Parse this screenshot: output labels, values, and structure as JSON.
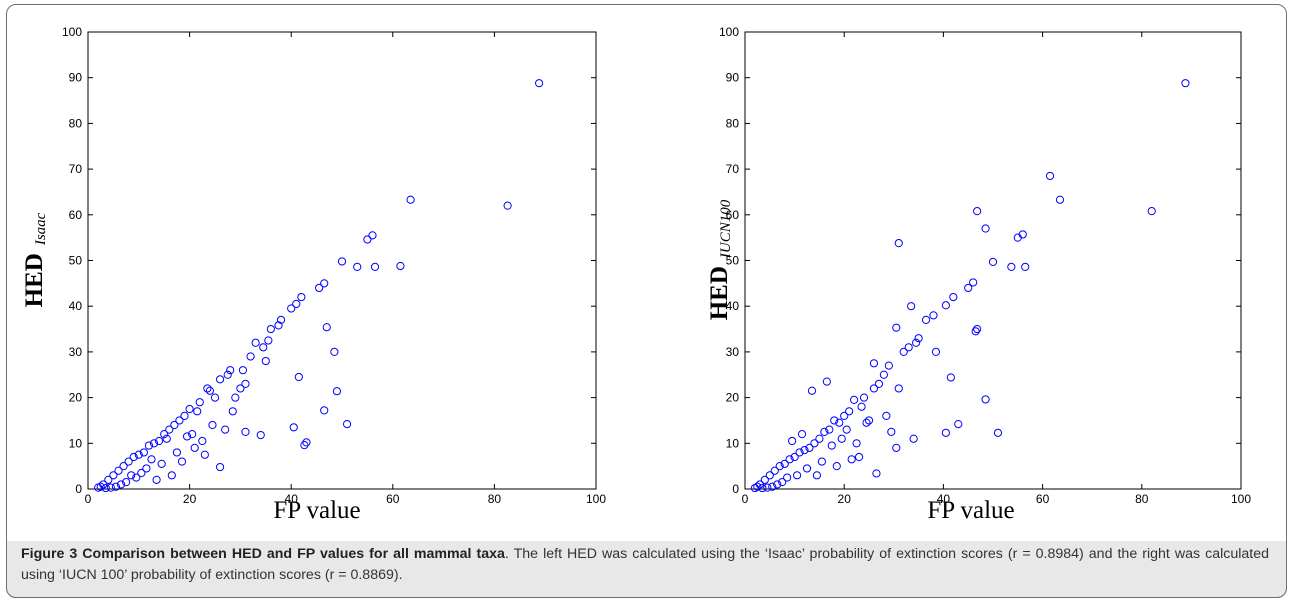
{
  "figure": {
    "caption_title": "Figure 3 Comparison between HED and FP values for all mammal taxa",
    "caption_text": ". The left HED was calculated using the ‘Isaac’ probability of extinction scores (r = 0.8984) and the right was calculated using ‘IUCN 100’ probability of extinction scores (r = 0.8869)."
  },
  "chart_data": [
    {
      "type": "scatter",
      "xlabel": "FP value",
      "ylabel": "HED",
      "ylabel_subscript": "Isaac",
      "xlim": [
        0,
        100
      ],
      "ylim": [
        0,
        100
      ],
      "xticks": [
        0,
        20,
        40,
        60,
        80,
        100
      ],
      "yticks": [
        0,
        10,
        20,
        30,
        40,
        50,
        60,
        70,
        80,
        90,
        100
      ],
      "marker": "open-circle",
      "marker_color": "#0000ff",
      "grid": false,
      "points": [
        [
          88.8,
          88.8
        ],
        [
          63.5,
          63.3
        ],
        [
          82.6,
          62.0
        ],
        [
          56.0,
          55.5
        ],
        [
          55.0,
          54.6
        ],
        [
          50.0,
          49.8
        ],
        [
          53.0,
          48.6
        ],
        [
          56.5,
          48.6
        ],
        [
          61.5,
          48.8
        ],
        [
          46.5,
          45.0
        ],
        [
          45.5,
          44.0
        ],
        [
          42.0,
          42.0
        ],
        [
          41.0,
          40.5
        ],
        [
          40.0,
          39.5
        ],
        [
          38.0,
          37.0
        ],
        [
          37.5,
          35.8
        ],
        [
          47.0,
          35.4
        ],
        [
          36.0,
          35.0
        ],
        [
          33.0,
          32.0
        ],
        [
          35.5,
          32.5
        ],
        [
          48.5,
          30.0
        ],
        [
          35.0,
          28.0
        ],
        [
          41.5,
          24.5
        ],
        [
          49.0,
          21.4
        ],
        [
          31.0,
          23.0
        ],
        [
          30.0,
          22.0
        ],
        [
          46.5,
          17.2
        ],
        [
          29.0,
          20.0
        ],
        [
          51.0,
          14.2
        ],
        [
          40.5,
          13.5
        ],
        [
          43.0,
          10.2
        ],
        [
          42.6,
          9.6
        ],
        [
          34.0,
          11.8
        ],
        [
          31.0,
          12.5
        ],
        [
          26.0,
          4.8
        ],
        [
          27.0,
          13.0
        ],
        [
          28.0,
          26.0
        ],
        [
          27.5,
          25.0
        ],
        [
          26.0,
          24.0
        ],
        [
          24.0,
          21.5
        ],
        [
          25.0,
          20.0
        ],
        [
          23.5,
          22.0
        ],
        [
          22.0,
          19.0
        ],
        [
          21.5,
          17.0
        ],
        [
          20.0,
          17.5
        ],
        [
          21.0,
          9.0
        ],
        [
          19.0,
          16.0
        ],
        [
          18.0,
          15.0
        ],
        [
          17.0,
          14.0
        ],
        [
          16.0,
          13.0
        ],
        [
          20.5,
          12.0
        ],
        [
          15.5,
          11.0
        ],
        [
          18.5,
          6.0
        ],
        [
          15.0,
          12.0
        ],
        [
          14.0,
          10.5
        ],
        [
          13.0,
          10.0
        ],
        [
          17.5,
          8.0
        ],
        [
          12.0,
          9.5
        ],
        [
          14.5,
          5.5
        ],
        [
          11.0,
          8.0
        ],
        [
          12.5,
          6.5
        ],
        [
          10.0,
          7.5
        ],
        [
          11.5,
          4.5
        ],
        [
          9.0,
          7.0
        ],
        [
          10.5,
          3.5
        ],
        [
          8.0,
          6.0
        ],
        [
          9.5,
          2.5
        ],
        [
          7.0,
          5.0
        ],
        [
          8.5,
          3.0
        ],
        [
          6.0,
          4.0
        ],
        [
          7.5,
          1.5
        ],
        [
          5.0,
          3.0
        ],
        [
          6.5,
          1.0
        ],
        [
          4.0,
          2.0
        ],
        [
          5.5,
          0.5
        ],
        [
          3.0,
          1.0
        ],
        [
          4.5,
          0.3
        ],
        [
          2.5,
          0.5
        ],
        [
          3.5,
          0.2
        ],
        [
          2.0,
          0.3
        ],
        [
          16.5,
          3.0
        ],
        [
          13.5,
          2.0
        ],
        [
          22.5,
          10.5
        ],
        [
          24.5,
          14.0
        ],
        [
          19.5,
          11.5
        ],
        [
          30.5,
          26.0
        ],
        [
          32.0,
          29.0
        ],
        [
          34.5,
          31.0
        ],
        [
          28.5,
          17.0
        ],
        [
          23.0,
          7.5
        ]
      ]
    },
    {
      "type": "scatter",
      "xlabel": "FP value",
      "ylabel": "HED",
      "ylabel_subscript": "IUCN100",
      "xlim": [
        0,
        100
      ],
      "ylim": [
        0,
        100
      ],
      "xticks": [
        0,
        20,
        40,
        60,
        80,
        100
      ],
      "yticks": [
        0,
        10,
        20,
        30,
        40,
        50,
        60,
        70,
        80,
        90,
        100
      ],
      "marker": "open-circle",
      "marker_color": "#0000ff",
      "grid": false,
      "points": [
        [
          88.8,
          88.8
        ],
        [
          61.5,
          68.5
        ],
        [
          63.5,
          63.3
        ],
        [
          82.0,
          60.8
        ],
        [
          46.8,
          60.8
        ],
        [
          48.5,
          57.0
        ],
        [
          56.0,
          55.7
        ],
        [
          55.0,
          55.0
        ],
        [
          31.0,
          53.8
        ],
        [
          50.0,
          49.7
        ],
        [
          53.7,
          48.6
        ],
        [
          56.5,
          48.6
        ],
        [
          46.0,
          45.2
        ],
        [
          45.0,
          44.0
        ],
        [
          42.0,
          42.0
        ],
        [
          40.5,
          40.2
        ],
        [
          33.5,
          40.0
        ],
        [
          38.0,
          38.0
        ],
        [
          36.5,
          37.0
        ],
        [
          30.5,
          35.3
        ],
        [
          46.8,
          35.0
        ],
        [
          46.5,
          34.5
        ],
        [
          35.0,
          33.0
        ],
        [
          33.0,
          31.0
        ],
        [
          38.5,
          30.0
        ],
        [
          29.0,
          27.0
        ],
        [
          41.5,
          24.4
        ],
        [
          48.5,
          19.6
        ],
        [
          31.0,
          22.0
        ],
        [
          28.0,
          25.0
        ],
        [
          43.0,
          14.2
        ],
        [
          40.5,
          12.3
        ],
        [
          51.0,
          12.3
        ],
        [
          34.0,
          11.0
        ],
        [
          26.5,
          3.4
        ],
        [
          30.5,
          9.0
        ],
        [
          27.0,
          23.0
        ],
        [
          26.0,
          22.0
        ],
        [
          24.0,
          20.0
        ],
        [
          23.5,
          18.0
        ],
        [
          22.0,
          19.5
        ],
        [
          21.0,
          17.0
        ],
        [
          20.0,
          16.0
        ],
        [
          20.5,
          13.0
        ],
        [
          19.0,
          14.5
        ],
        [
          18.0,
          15.0
        ],
        [
          13.5,
          21.5
        ],
        [
          17.0,
          13.0
        ],
        [
          16.0,
          12.5
        ],
        [
          15.0,
          11.0
        ],
        [
          17.5,
          9.5
        ],
        [
          14.0,
          10.0
        ],
        [
          18.5,
          5.0
        ],
        [
          13.0,
          9.0
        ],
        [
          12.0,
          8.5
        ],
        [
          15.5,
          6.0
        ],
        [
          11.0,
          8.0
        ],
        [
          10.0,
          7.0
        ],
        [
          12.5,
          4.5
        ],
        [
          9.0,
          6.5
        ],
        [
          8.0,
          5.5
        ],
        [
          10.5,
          3.0
        ],
        [
          7.0,
          5.0
        ],
        [
          6.0,
          4.0
        ],
        [
          8.5,
          2.5
        ],
        [
          5.0,
          3.0
        ],
        [
          7.5,
          1.5
        ],
        [
          4.0,
          2.0
        ],
        [
          6.5,
          1.0
        ],
        [
          3.0,
          1.0
        ],
        [
          5.5,
          0.5
        ],
        [
          2.5,
          0.5
        ],
        [
          4.5,
          0.3
        ],
        [
          2.0,
          0.2
        ],
        [
          3.5,
          0.2
        ],
        [
          16.5,
          23.5
        ],
        [
          14.5,
          3.0
        ],
        [
          22.5,
          10.0
        ],
        [
          24.5,
          14.5
        ],
        [
          19.5,
          11.0
        ],
        [
          32.0,
          30.0
        ],
        [
          34.5,
          32.0
        ],
        [
          28.5,
          16.0
        ],
        [
          23.0,
          7.0
        ],
        [
          26.0,
          27.5
        ],
        [
          25.0,
          15.0
        ],
        [
          29.5,
          12.5
        ],
        [
          21.5,
          6.5
        ],
        [
          11.5,
          12.0
        ],
        [
          9.5,
          10.5
        ]
      ]
    }
  ]
}
